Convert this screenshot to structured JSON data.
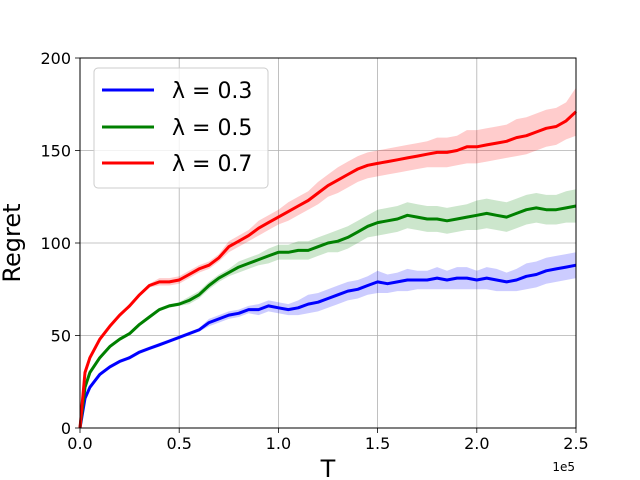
{
  "chart_data": {
    "type": "line",
    "xlabel": "T",
    "ylabel": "Regret",
    "x_multiplier_label": "1e5",
    "xlim": [
      0,
      250000
    ],
    "ylim": [
      0,
      200
    ],
    "x_ticks": [
      0,
      50000,
      100000,
      150000,
      200000,
      250000
    ],
    "x_tick_labels": [
      "0.0",
      "0.5",
      "1.0",
      "1.5",
      "2.0",
      "2.5"
    ],
    "y_ticks": [
      0,
      50,
      100,
      150,
      200
    ],
    "y_tick_labels": [
      "0",
      "50",
      "100",
      "150",
      "200"
    ],
    "grid": true,
    "legend_placement": "top-left",
    "x": [
      0,
      2500,
      5000,
      10000,
      15000,
      20000,
      25000,
      30000,
      35000,
      40000,
      45000,
      50000,
      55000,
      60000,
      65000,
      70000,
      75000,
      80000,
      85000,
      90000,
      95000,
      100000,
      105000,
      110000,
      115000,
      120000,
      125000,
      130000,
      135000,
      140000,
      145000,
      150000,
      155000,
      160000,
      165000,
      170000,
      175000,
      180000,
      185000,
      190000,
      195000,
      200000,
      205000,
      210000,
      215000,
      220000,
      225000,
      230000,
      235000,
      240000,
      245000,
      250000
    ],
    "series": [
      {
        "name": "λ = 0.3",
        "color": "#0000ff",
        "band_color": "#0000ff",
        "values": [
          0,
          16,
          22,
          29,
          33,
          36,
          38,
          41,
          43,
          45,
          47,
          49,
          51,
          53,
          57,
          59,
          61,
          62,
          64,
          64,
          66,
          65,
          64,
          65,
          67,
          68,
          70,
          72,
          74,
          75,
          77,
          79,
          78,
          79,
          80,
          80,
          80,
          81,
          80,
          81,
          81,
          80,
          81,
          80,
          79,
          80,
          82,
          83,
          85,
          86,
          87,
          88
        ],
        "lower": [
          0,
          15,
          21,
          28,
          32,
          35,
          37,
          40,
          42,
          44,
          46,
          48,
          50,
          52,
          55,
          57,
          59,
          60,
          62,
          61,
          63,
          62,
          61,
          61,
          62,
          63,
          65,
          67,
          69,
          70,
          72,
          73,
          73,
          74,
          74,
          75,
          75,
          75,
          75,
          75,
          75,
          75,
          75,
          74,
          74,
          74,
          75,
          76,
          78,
          79,
          80,
          81
        ],
        "upper": [
          0,
          17,
          23,
          30,
          34,
          37,
          39,
          42,
          44,
          46,
          48,
          50,
          52,
          54,
          59,
          61,
          63,
          64,
          66,
          67,
          69,
          68,
          67,
          69,
          72,
          73,
          75,
          77,
          79,
          80,
          82,
          85,
          83,
          84,
          86,
          85,
          85,
          87,
          85,
          87,
          87,
          85,
          87,
          86,
          84,
          86,
          89,
          90,
          92,
          93,
          94,
          95
        ]
      },
      {
        "name": "λ = 0.5",
        "color": "#008000",
        "band_color": "#008000",
        "values": [
          0,
          22,
          30,
          38,
          44,
          48,
          51,
          56,
          60,
          64,
          66,
          67,
          69,
          72,
          77,
          81,
          84,
          87,
          89,
          91,
          93,
          95,
          95,
          96,
          96,
          98,
          100,
          101,
          103,
          106,
          109,
          111,
          112,
          113,
          115,
          114,
          113,
          113,
          112,
          113,
          114,
          115,
          116,
          115,
          114,
          116,
          118,
          119,
          118,
          118,
          119,
          120
        ],
        "lower": [
          0,
          21,
          29,
          37,
          43,
          47,
          50,
          55,
          59,
          63,
          65,
          66,
          67,
          70,
          75,
          79,
          82,
          84,
          86,
          88,
          89,
          91,
          91,
          91,
          91,
          93,
          95,
          95,
          97,
          100,
          103,
          104,
          105,
          106,
          108,
          107,
          106,
          106,
          105,
          106,
          107,
          107,
          108,
          107,
          106,
          108,
          110,
          111,
          110,
          110,
          111,
          111
        ],
        "upper": [
          0,
          23,
          31,
          39,
          45,
          49,
          52,
          57,
          61,
          65,
          67,
          68,
          71,
          74,
          79,
          83,
          86,
          90,
          92,
          94,
          97,
          99,
          99,
          101,
          101,
          103,
          105,
          107,
          109,
          112,
          115,
          118,
          119,
          120,
          122,
          121,
          120,
          120,
          119,
          120,
          121,
          123,
          124,
          123,
          122,
          124,
          126,
          127,
          126,
          126,
          128,
          129
        ]
      },
      {
        "name": "λ = 0.7",
        "color": "#ff0000",
        "band_color": "#ff0000",
        "values": [
          0,
          30,
          38,
          48,
          55,
          61,
          66,
          72,
          77,
          79,
          79,
          80,
          83,
          86,
          88,
          92,
          98,
          101,
          104,
          108,
          111,
          114,
          117,
          120,
          123,
          127,
          131,
          134,
          137,
          140,
          142,
          143,
          144,
          145,
          146,
          147,
          148,
          149,
          149,
          150,
          152,
          152,
          153,
          154,
          155,
          157,
          158,
          160,
          162,
          163,
          166,
          171
        ],
        "lower": [
          0,
          29,
          37,
          47,
          54,
          60,
          65,
          71,
          76,
          77,
          77,
          78,
          81,
          84,
          86,
          90,
          95,
          98,
          101,
          104,
          107,
          110,
          112,
          115,
          118,
          121,
          125,
          127,
          130,
          133,
          135,
          136,
          137,
          138,
          139,
          140,
          141,
          141,
          141,
          142,
          143,
          143,
          144,
          145,
          146,
          147,
          148,
          150,
          152,
          153,
          156,
          158
        ],
        "upper": [
          0,
          31,
          39,
          49,
          56,
          62,
          67,
          73,
          78,
          81,
          81,
          82,
          85,
          88,
          90,
          94,
          101,
          104,
          107,
          112,
          115,
          118,
          122,
          125,
          128,
          133,
          137,
          141,
          144,
          147,
          149,
          150,
          151,
          152,
          153,
          154,
          155,
          157,
          157,
          158,
          161,
          161,
          162,
          163,
          164,
          167,
          168,
          170,
          172,
          173,
          176,
          184
        ]
      }
    ]
  }
}
